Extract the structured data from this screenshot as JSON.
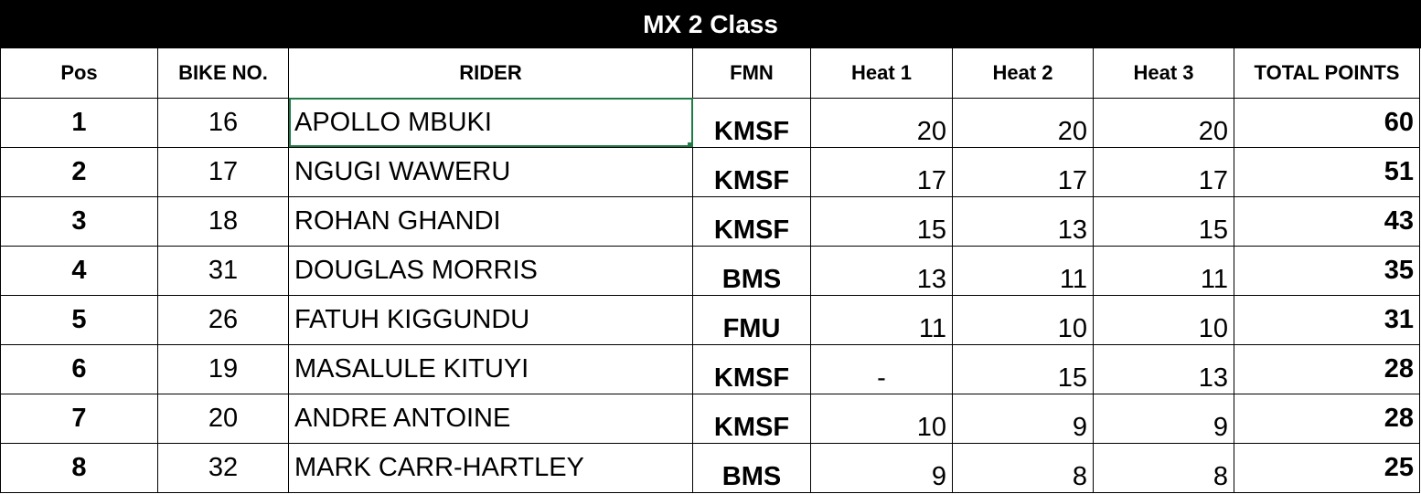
{
  "title": "MX 2 Class",
  "columns": [
    "Pos",
    "BIKE NO.",
    "RIDER",
    "FMN",
    "Heat 1",
    "Heat 2",
    "Heat 3",
    "TOTAL POINTS"
  ],
  "rows": [
    {
      "pos": "1",
      "bike": "16",
      "rider": "APOLLO MBUKI",
      "fmn": "KMSF",
      "heat1": "20",
      "heat2": "20",
      "heat3": "20",
      "total": "60"
    },
    {
      "pos": "2",
      "bike": "17",
      "rider": "NGUGI WAWERU",
      "fmn": "KMSF",
      "heat1": "17",
      "heat2": "17",
      "heat3": "17",
      "total": "51"
    },
    {
      "pos": "3",
      "bike": "18",
      "rider": "ROHAN GHANDI",
      "fmn": "KMSF",
      "heat1": "15",
      "heat2": "13",
      "heat3": "15",
      "total": "43"
    },
    {
      "pos": "4",
      "bike": "31",
      "rider": "DOUGLAS MORRIS",
      "fmn": "BMS",
      "heat1": "13",
      "heat2": "11",
      "heat3": "11",
      "total": "35"
    },
    {
      "pos": "5",
      "bike": "26",
      "rider": "FATUH KIGGUNDU",
      "fmn": "FMU",
      "heat1": "11",
      "heat2": "10",
      "heat3": "10",
      "total": "31"
    },
    {
      "pos": "6",
      "bike": "19",
      "rider": "MASALULE KITUYI",
      "fmn": "KMSF",
      "heat1": "-",
      "heat2": "15",
      "heat3": "13",
      "total": "28"
    },
    {
      "pos": "7",
      "bike": "20",
      "rider": "ANDRE ANTOINE",
      "fmn": "KMSF",
      "heat1": "10",
      "heat2": "9",
      "heat3": "9",
      "total": "28"
    },
    {
      "pos": "8",
      "bike": "32",
      "rider": "MARK CARR-HARTLEY",
      "fmn": "BMS",
      "heat1": "9",
      "heat2": "8",
      "heat3": "8",
      "total": "25"
    }
  ],
  "selection_color": "#1f7a45"
}
